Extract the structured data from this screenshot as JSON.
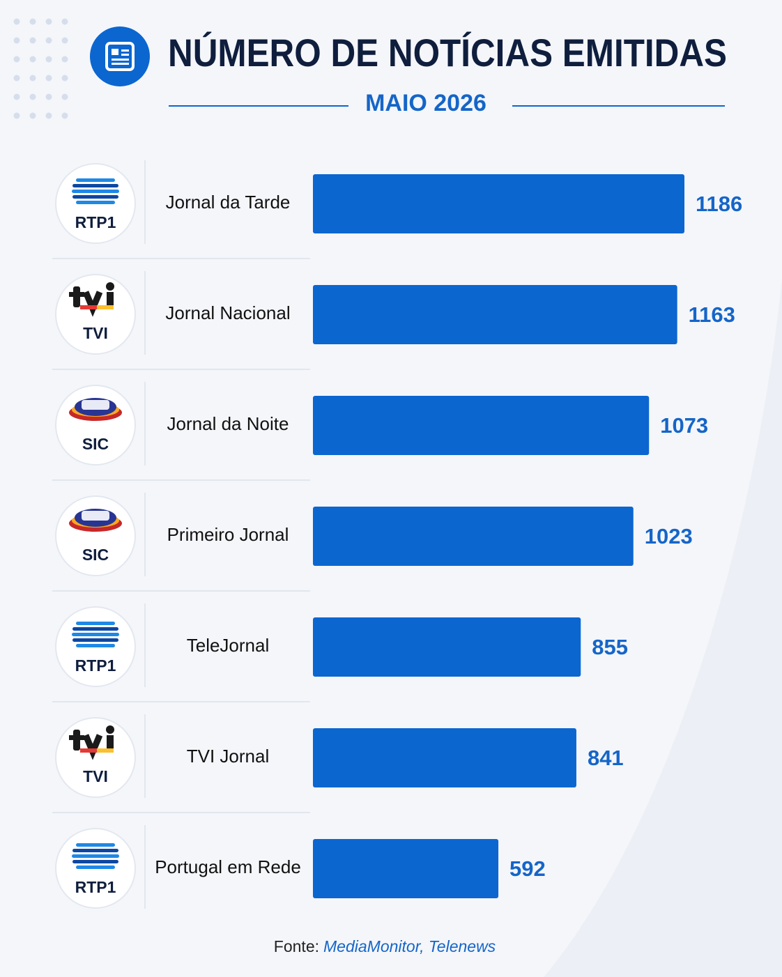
{
  "chart_data": {
    "type": "bar",
    "orientation": "horizontal",
    "title": "NÚMERO DE NOTÍCIAS EMITIDAS",
    "subtitle": "MAIO 2026",
    "categories": [
      "Jornal da Tarde",
      "Jornal Nacional",
      "Jornal da Noite",
      "Primeiro Jornal",
      "TeleJornal",
      "TVI Jornal",
      "Portugal em Rede"
    ],
    "channels": [
      "RTP1",
      "TVI",
      "SIC",
      "SIC",
      "RTP1",
      "TVI",
      "RTP1"
    ],
    "values": [
      1186,
      1163,
      1073,
      1023,
      855,
      841,
      592
    ],
    "color": "#0b66d0",
    "source_label": "Fonte:",
    "source": "MediaMonitor, Telenews"
  }
}
